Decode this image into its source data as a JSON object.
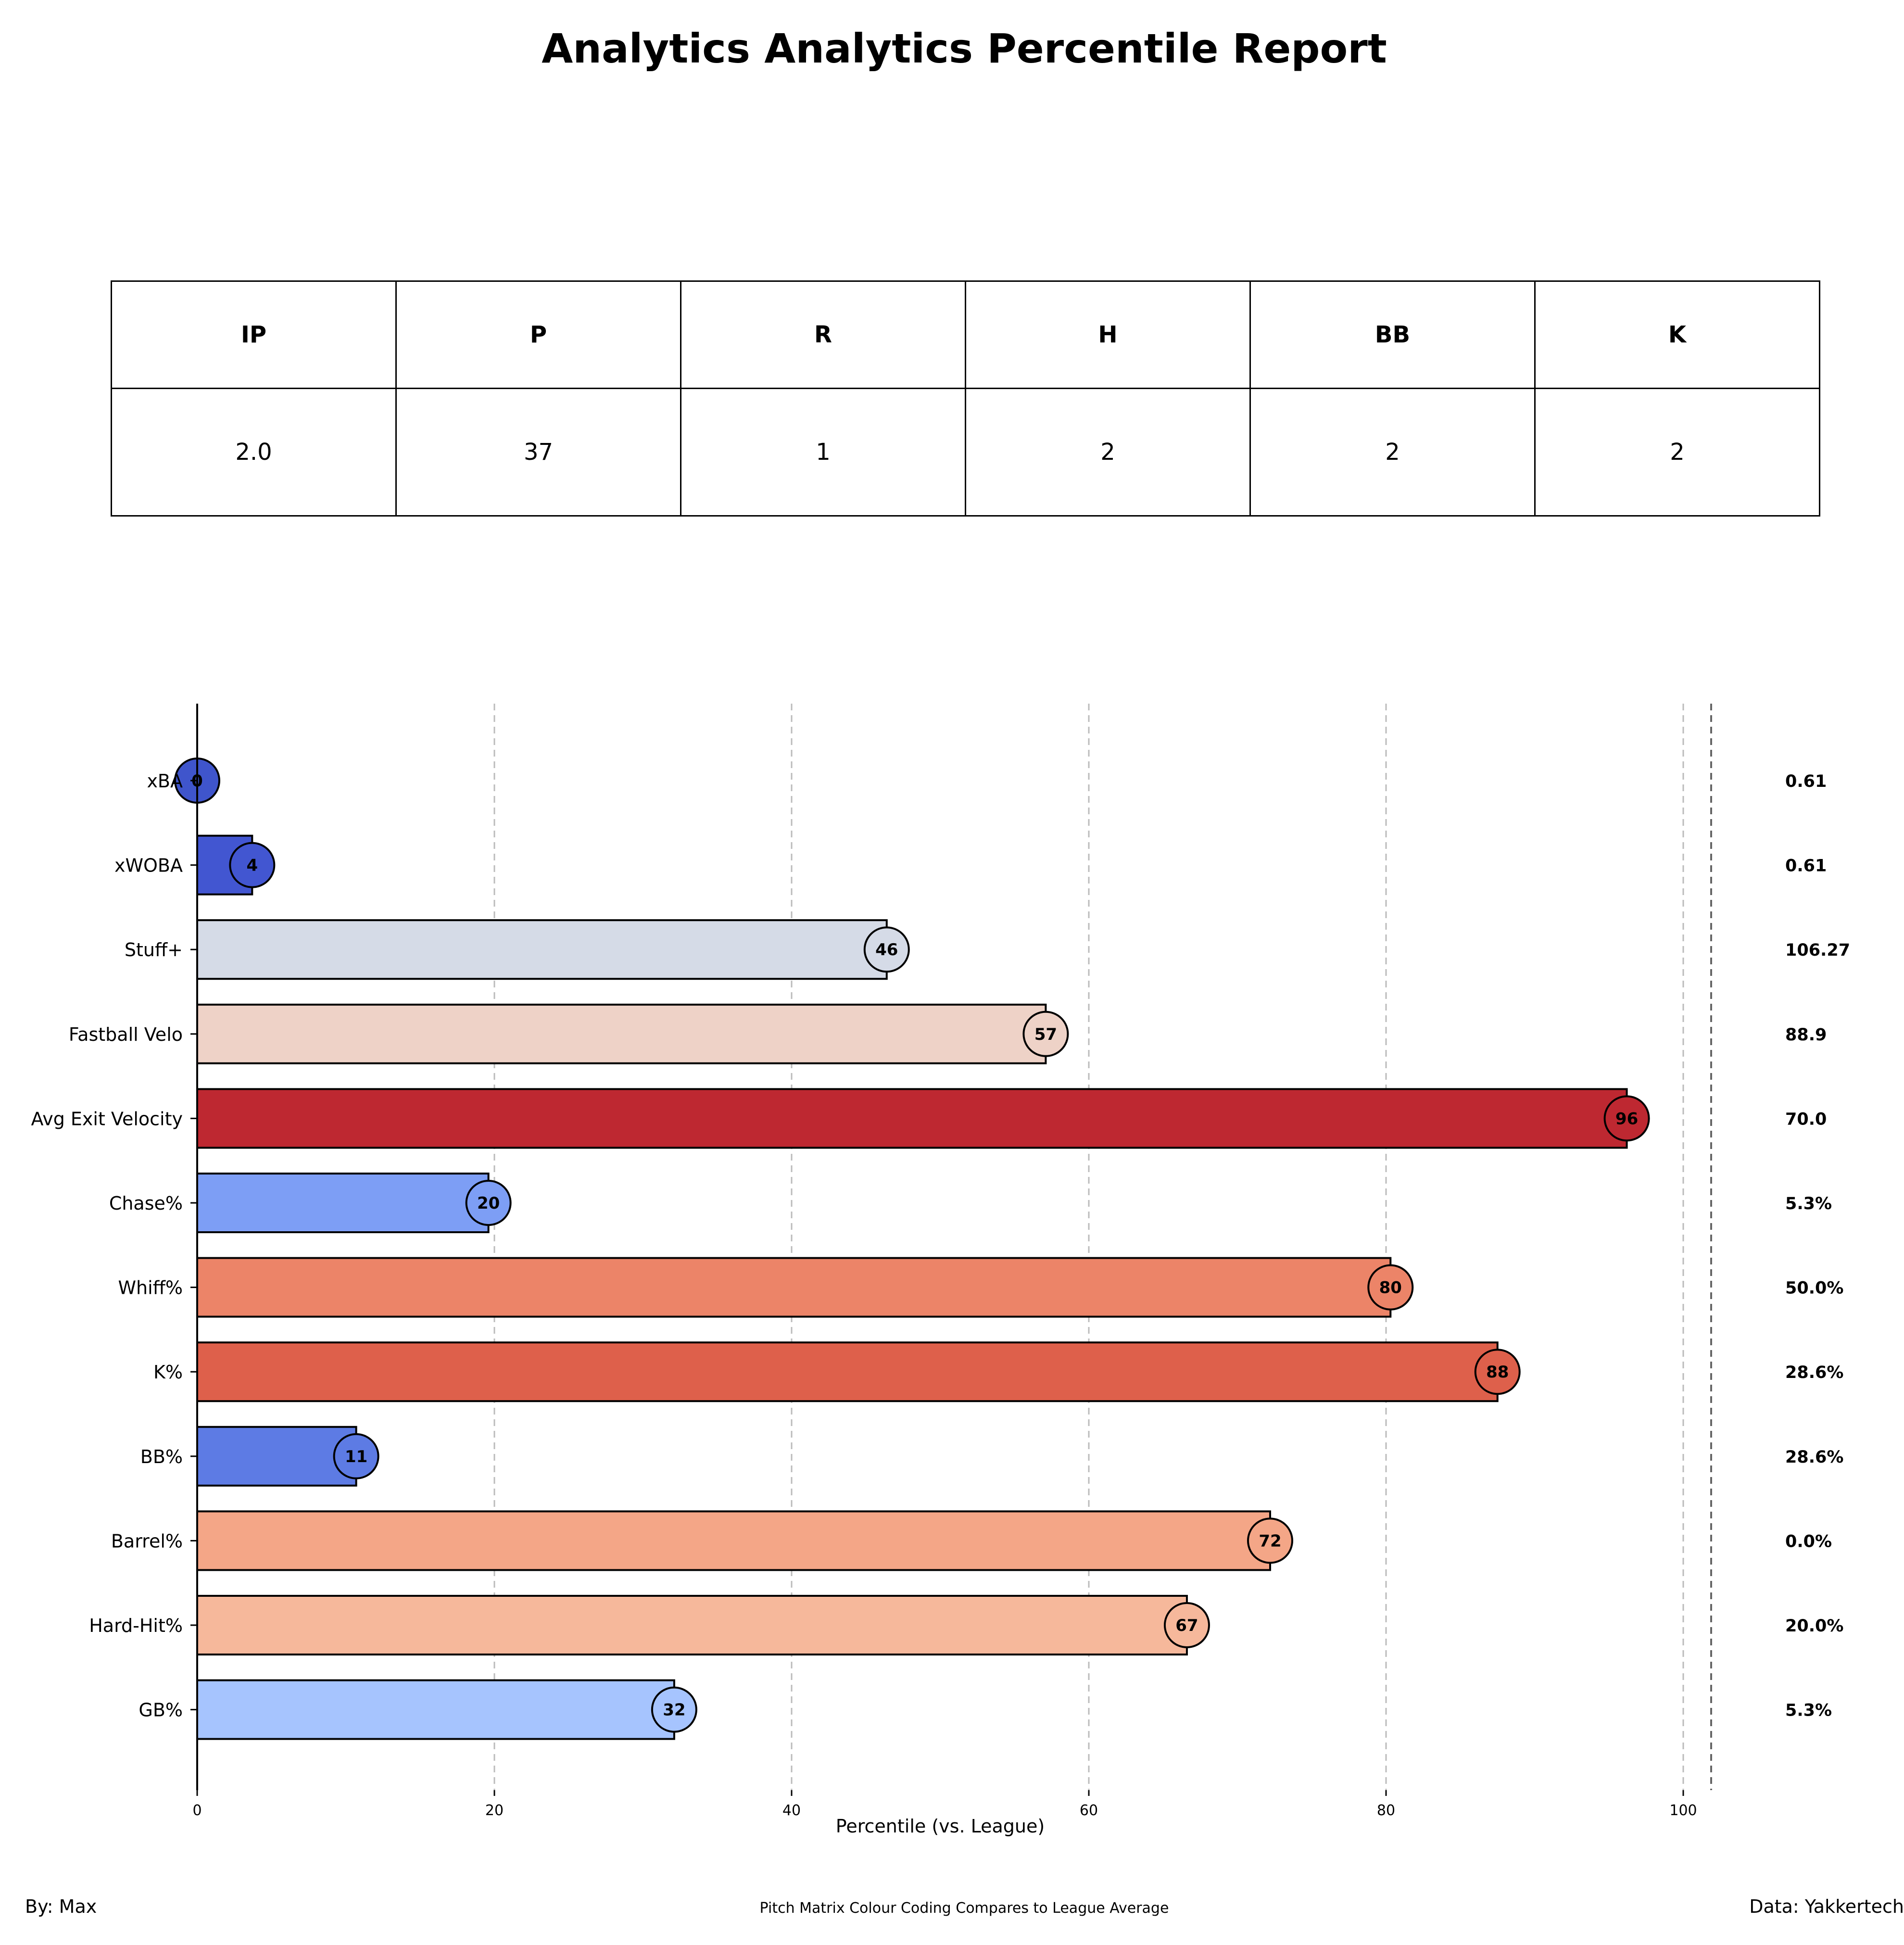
{
  "title": "Analytics Analytics Percentile Report",
  "stats_table": {
    "headers": [
      "IP",
      "P",
      "R",
      "H",
      "BB",
      "K"
    ],
    "values": [
      "2.0",
      "37",
      "1",
      "2",
      "2",
      "2"
    ]
  },
  "chart_data": {
    "type": "bar",
    "orientation": "horizontal",
    "categories": [
      "xBA",
      "xWOBA",
      "Stuff+",
      "Fastball Velo",
      "Avg Exit Velocity",
      "Chase%",
      "Whiff%",
      "K%",
      "BB%",
      "Barrel%",
      "Hard-Hit%",
      "GB%"
    ],
    "values": [
      0,
      3.7,
      46.4,
      57.1,
      96.2,
      19.6,
      80.3,
      87.5,
      10.7,
      72.2,
      66.6,
      32.1
    ],
    "percentile_labels": [
      "0",
      "4",
      "46",
      "57",
      "96",
      "20",
      "80",
      "88",
      "11",
      "72",
      "67",
      "32"
    ],
    "stat_values": [
      "0.61",
      "0.61",
      "106.27",
      "88.9",
      "70.0",
      "5.3%",
      "50.0%",
      "28.6%",
      "28.6%",
      "0.0%",
      "20.0%",
      "5.3%"
    ],
    "colors": [
      "#3f55cc",
      "#4256d1",
      "#d5dbe7",
      "#eed2c7",
      "#be2831",
      "#7d9ef5",
      "#ec8468",
      "#de604b",
      "#5d7be4",
      "#f4a687",
      "#f6b89b",
      "#a6c4fe"
    ],
    "xlabel": "Percentile (vs. League)",
    "ylabel": "",
    "xlim": [
      0,
      102
    ],
    "xticks": [
      0,
      20,
      40,
      60,
      80,
      100
    ],
    "grid": "vertical dashed"
  },
  "footer": {
    "left": "By: Max",
    "center": "Pitch Matrix Colour Coding Compares to League Average",
    "right": "Data: Yakkertech"
  }
}
